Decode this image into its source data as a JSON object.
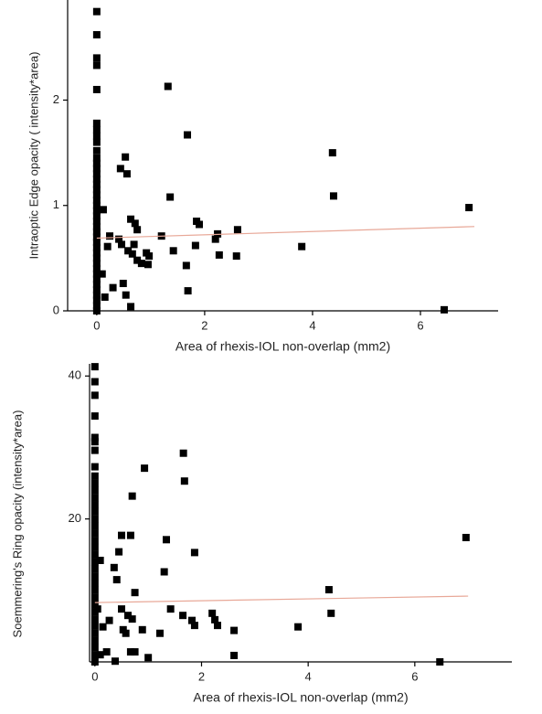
{
  "chart_data": [
    {
      "type": "scatter",
      "xlabel": "Area of rhexis-IOL non-overlap (mm2)",
      "ylabel": "Intraoptic Edge opacity ( intensity*area)",
      "xlim": [
        -0.54,
        7.44
      ],
      "ylim": [
        0,
        2.95
      ],
      "xticks": [
        0,
        2,
        4,
        6
      ],
      "yticks": [
        0,
        1,
        2
      ],
      "color": "#000000",
      "x": [
        0,
        0,
        0,
        0,
        0,
        0,
        0,
        0,
        0,
        0,
        0,
        0,
        0,
        0,
        0,
        0,
        0,
        0,
        0,
        0,
        0,
        0,
        0,
        0,
        0,
        0,
        0,
        0,
        0,
        0,
        0,
        0,
        0,
        0,
        0,
        0,
        0,
        0,
        0,
        0,
        0.12,
        0.1,
        0.15,
        0.24,
        0.2,
        0.3,
        0.41,
        0.46,
        0.44,
        0.53,
        0.56,
        0.49,
        0.54,
        0.58,
        0.63,
        0.71,
        0.75,
        0.66,
        0.75,
        0.63,
        0.69,
        0.83,
        0.92,
        0.97,
        0.95,
        1.2,
        1.32,
        1.36,
        1.42,
        1.68,
        1.66,
        1.69,
        1.85,
        1.9,
        1.83,
        2.2,
        2.24,
        2.27,
        2.61,
        2.59,
        3.8,
        4.37,
        4.39,
        6.9,
        6.44
      ],
      "values": [
        2.84,
        2.62,
        2.4,
        2.33,
        2.1,
        1.78,
        1.72,
        1.66,
        1.6,
        1.52,
        1.45,
        1.4,
        1.35,
        1.3,
        1.25,
        1.2,
        1.15,
        1.1,
        1.05,
        1.0,
        0.95,
        0.9,
        0.85,
        0.8,
        0.75,
        0.7,
        0.65,
        0.6,
        0.55,
        0.5,
        0.45,
        0.4,
        0.35,
        0.3,
        0.25,
        0.2,
        0.15,
        0.1,
        0.05,
        0,
        0.96,
        0.35,
        0.13,
        0.71,
        0.61,
        0.22,
        0.68,
        0.63,
        1.35,
        1.46,
        1.3,
        0.26,
        0.15,
        0.57,
        0.87,
        0.83,
        0.77,
        0.54,
        0.48,
        0.04,
        0.63,
        0.45,
        0.55,
        0.52,
        0.44,
        0.71,
        2.13,
        1.08,
        0.57,
        1.67,
        0.43,
        0.19,
        0.85,
        0.82,
        0.62,
        0.68,
        0.73,
        0.53,
        0.77,
        0.52,
        0.61,
        1.5,
        1.09,
        0.98,
        0.01
      ],
      "fit": {
        "x": [
          0,
          7
        ],
        "values": [
          0.69,
          0.8
        ],
        "color": "#e8a898"
      }
    },
    {
      "type": "scatter",
      "xlabel": "Area of rhexis-IOL non-overlap (mm2)",
      "ylabel": "Soemmering's Ring opacity (intensity*area)",
      "xlim": [
        -0.1,
        7.82
      ],
      "ylim": [
        0,
        41.7
      ],
      "xticks": [
        0,
        2,
        4,
        6
      ],
      "yticks": [
        20,
        40
      ],
      "color": "#000000",
      "x": [
        0,
        0,
        0,
        0,
        0,
        0,
        0,
        0,
        0,
        0,
        0,
        0,
        0,
        0,
        0,
        0,
        0,
        0,
        0,
        0,
        0,
        0,
        0,
        0,
        0,
        0,
        0,
        0,
        0,
        0,
        0,
        0,
        0,
        0,
        0,
        0.1,
        0.05,
        0.1,
        0.15,
        0.22,
        0.27,
        0.36,
        0.41,
        0.45,
        0.5,
        0.5,
        0.53,
        0.58,
        0.38,
        0.62,
        0.67,
        0.67,
        0.7,
        0.7,
        0.75,
        0.75,
        0.89,
        0.93,
        1.0,
        1.22,
        1.3,
        1.34,
        1.42,
        1.66,
        1.68,
        1.65,
        1.82,
        1.87,
        1.87,
        2.2,
        2.25,
        2.3,
        2.61,
        2.61,
        3.81,
        4.39,
        4.43,
        6.96,
        6.47
      ],
      "values": [
        41.3,
        39.2,
        37.3,
        34.4,
        31.4,
        30.8,
        29.6,
        27.3,
        26,
        25,
        24,
        23,
        22,
        21,
        20,
        19,
        18,
        17,
        16,
        15,
        14,
        13,
        12,
        11,
        10,
        9,
        8,
        7,
        6,
        5,
        4,
        3,
        2,
        1,
        0,
        14.2,
        7.4,
        1.0,
        4.9,
        1.4,
        5.8,
        13.2,
        11.5,
        15.4,
        17.7,
        7.4,
        4.5,
        4.0,
        0.1,
        6.5,
        17.7,
        1.4,
        23.2,
        6.0,
        1.4,
        9.7,
        4.5,
        27.1,
        0.6,
        4.0,
        12.6,
        17.1,
        7.4,
        29.2,
        25.3,
        6.5,
        5.8,
        5.1,
        15.3,
        6.8,
        5.9,
        5.1,
        4.4,
        0.9,
        4.9,
        10.1,
        6.8,
        17.4,
        0.0
      ],
      "fit": {
        "x": [
          0,
          7
        ],
        "values": [
          8.3,
          9.2
        ],
        "color": "#e8a898"
      }
    }
  ]
}
